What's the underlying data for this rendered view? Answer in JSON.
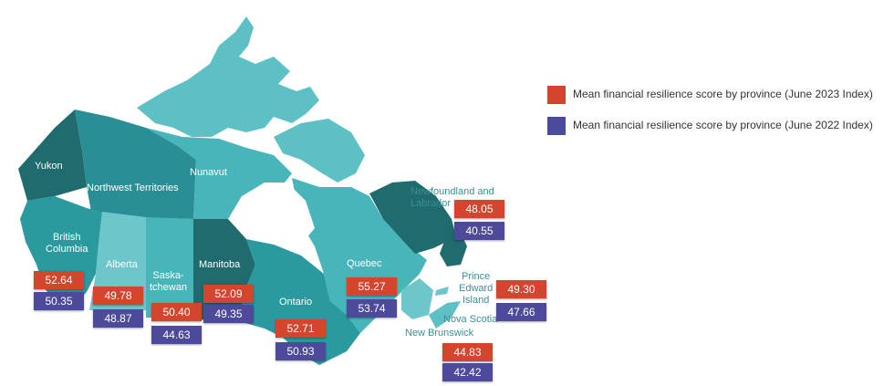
{
  "colors": {
    "score_2023": "#d5442d",
    "score_2022": "#4d4a9b",
    "map_teal_dark": "#1f6b6e",
    "map_teal_mid": "#2a9a9f",
    "map_teal_light": "#5cc0c4"
  },
  "legend": {
    "items": [
      {
        "label": "Mean financial resilience score by province (June 2023 Index)",
        "color": "#d5442d"
      },
      {
        "label": "Mean financial resilience score by province (June 2022 Index)",
        "color": "#4d4a9b"
      }
    ]
  },
  "regions": {
    "yukon": "Yukon",
    "nwt": "Northwest Territories",
    "nunavut": "Nunavut",
    "bc": "British\nColumbia",
    "alberta": "Alberta",
    "sask": "Saska-\ntchewan",
    "manitoba": "Manitoba",
    "ontario": "Ontario",
    "quebec": "Quebec",
    "nl": "Newfoundland and\nLabrador",
    "pei": "Prince\nEdward\nIsland",
    "ns": "Nova Scotia",
    "nb": "New Brunswick"
  },
  "scores": {
    "bc": {
      "y2023": "52.64",
      "y2022": "50.35"
    },
    "alberta": {
      "y2023": "49.78",
      "y2022": "48.87"
    },
    "sask": {
      "y2023": "50.40",
      "y2022": "44.63"
    },
    "manitoba": {
      "y2023": "52.09",
      "y2022": "49.35"
    },
    "ontario": {
      "y2023": "52.71",
      "y2022": "50.93"
    },
    "quebec": {
      "y2023": "55.27",
      "y2022": "53.74"
    },
    "nl": {
      "y2023": "48.05",
      "y2022": "40.55"
    },
    "pei": {
      "y2023": "49.30",
      "y2022": "47.66"
    },
    "nb": {
      "y2023": "44.83",
      "y2022": "42.42"
    }
  }
}
